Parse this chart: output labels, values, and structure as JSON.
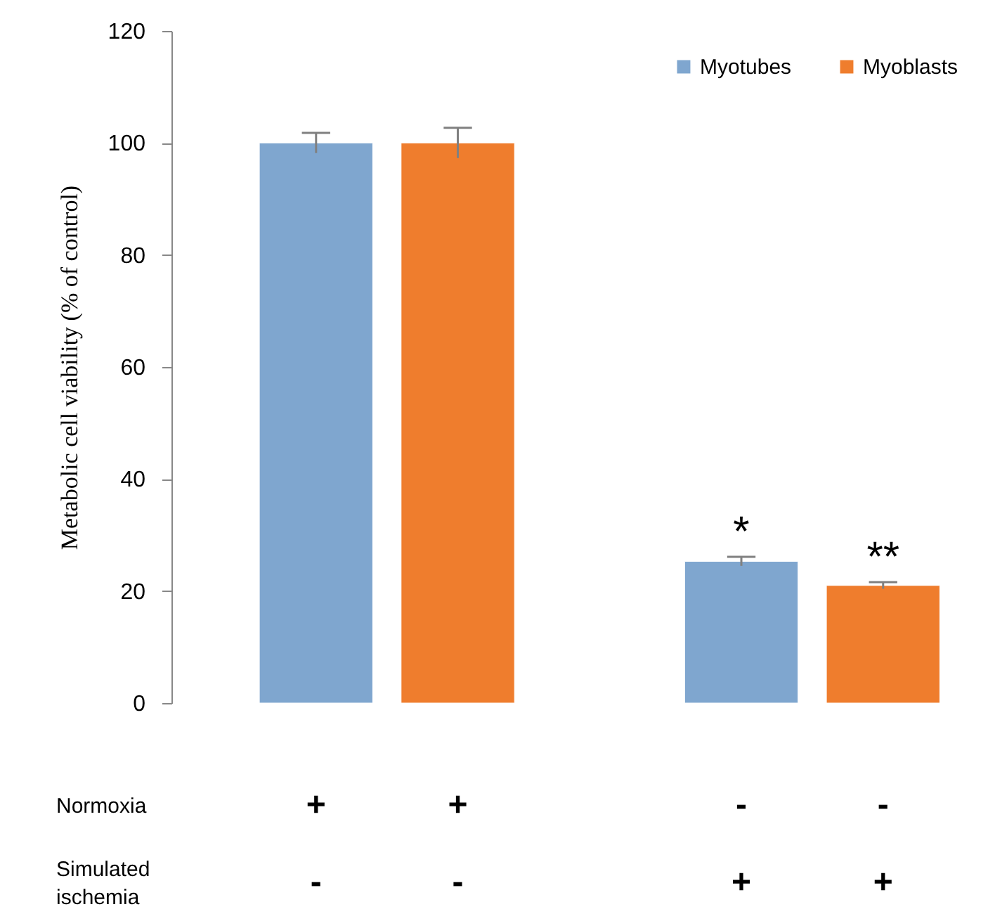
{
  "chart_data": {
    "type": "bar",
    "ylabel": "Metabolic cell viability (% of control)",
    "categories": [
      null,
      null
    ],
    "series": [
      {
        "name": "Myotubes",
        "color": "#7fa6cf",
        "values": [
          100,
          25.3
        ],
        "errors": [
          1.8,
          0.8
        ]
      },
      {
        "name": "Myoblasts",
        "color": "#ef7d2d",
        "values": [
          100,
          21
        ],
        "errors": [
          2.7,
          0.6
        ]
      }
    ],
    "ylim": [
      0,
      120
    ],
    "yticks": [
      0,
      20,
      40,
      60,
      80,
      100,
      120
    ],
    "grid": false,
    "legend": "top right",
    "tick_labels": "y",
    "annotations": [
      "*",
      "**",
      "Normoxia",
      "+",
      "+",
      "-",
      "-",
      "Simulated ischemia",
      "-",
      "-",
      "+",
      "+"
    ]
  }
}
